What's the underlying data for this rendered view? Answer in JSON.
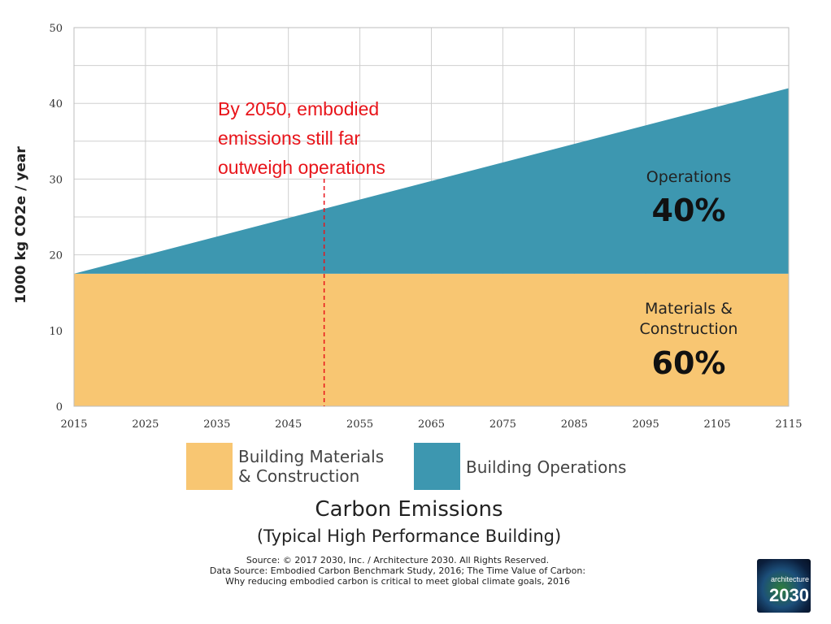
{
  "chart_data": {
    "type": "area",
    "x": [
      2015,
      2115
    ],
    "series": [
      {
        "name": "Building Materials & Construction",
        "values": [
          17.5,
          17.5
        ],
        "color": "#f8c672"
      },
      {
        "name": "Building Operations",
        "values": [
          0,
          24.5
        ],
        "color": "#3d97b0"
      }
    ],
    "xlim": [
      2015,
      2115
    ],
    "ylim": [
      0,
      50
    ],
    "x_ticks": [
      2015,
      2025,
      2035,
      2045,
      2055,
      2065,
      2075,
      2085,
      2095,
      2105,
      2115
    ],
    "y_ticks": [
      0,
      10,
      20,
      30,
      40,
      50
    ],
    "ylabel": "1000 kg CO2e / year",
    "grid": true,
    "annotation": {
      "x": 2050,
      "lines": [
        "By 2050, embodied",
        "emissions still far",
        "outweigh operations"
      ],
      "color": "#e8141a"
    },
    "region_labels": {
      "operations": {
        "lines": [
          "Operations"
        ],
        "pct": "40%"
      },
      "materials": {
        "lines": [
          "Materials &",
          "Construction"
        ],
        "pct": "60%"
      }
    },
    "title": "Carbon Emissions",
    "subtitle": "(Typical High Performance Building)"
  },
  "legend": {
    "materials": "Building Materials\n& Construction",
    "operations": "Building Operations"
  },
  "source": {
    "line1": "Source: © 2017 2030, Inc. / Architecture 2030. All Rights Reserved.",
    "line2": "Data Source: Embodied Carbon Benchmark Study, 2016; The Time Value of Carbon:",
    "line3": "Why reducing embodied carbon is critical to meet global climate goals, 2016"
  },
  "badge": {
    "top": "architecture",
    "big": "2030"
  }
}
